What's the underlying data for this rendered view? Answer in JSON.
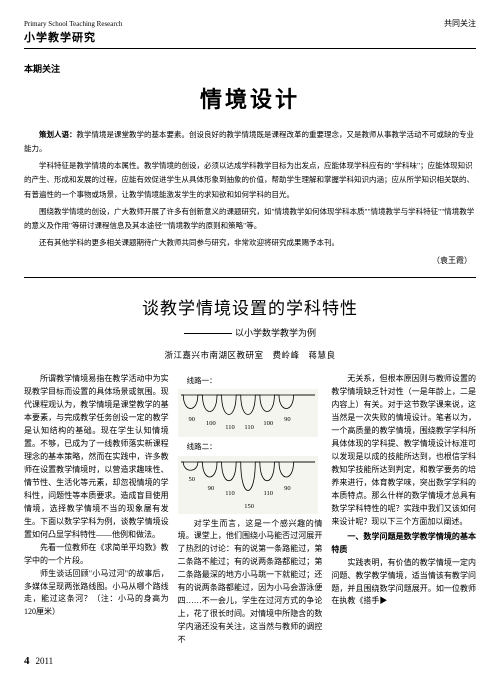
{
  "header": {
    "english": "Primary School Teaching Research",
    "journal": "小学教学研究",
    "right": "共同关注"
  },
  "section_label": "本期关注",
  "main_title": "情境设计",
  "editor_note": {
    "lead": "策划人语：",
    "p1": "教学情境是课堂教学的基本要素。创设良好的教学情境既是课程改革的重要理念，又是教师从事教学活动不可或缺的专业能力。",
    "p2": "学科特征是教学情境的本属性。教学情境的创设，必须以达成学科教学目标为出发点，应能体现学科应有的\"学科味\"；应能体现知识的产生、形成和发展的过程，应能有效促进学生从具体形象到抽象的价值，帮助学生理解和掌握学科知识内涵；应从所学知识相关联的、有普遍性的一个事物或场景，让教学情境能激发学生的求知欲和如何学科的目光。",
    "p3": "围绕教学情境的创设，广大教师开展了许多有创新意义的课题研究，如\"情境教学如何体现学科本质\"\"情境教学与学科特征\"\"情境教学的意义及作用\"等研讨课程信息及其本途径\"\"情境教学的原则和策略\"等。",
    "p4": "还有其他学科的更多相关课题期待广大教师共同参与研究，非常欢迎将研究成果赐予本刊。"
  },
  "signoff": "（袁王霞）",
  "article": {
    "title": "谈教学情境设置的学科特性",
    "subtitle": "以小学数学教学为例",
    "authors": "浙江嘉兴市南湖区教研室　费岭峰　蒋慧良"
  },
  "col1": {
    "p1": "所谓教学情境易指在教学活动中为实现教学目标而设置的具体场景或氛围。现代课程观认为，教学情境是课堂教学的基本要素，与完成教学任务创设一定的教学是认知结构的基础。现在学生认知情境置。不够，已成为了一线教师落实新课程理念的基本策略，然而在实践中，许多教师在设置教学情境时，以营造求趣味性、情节性、生活化等元素，却忽视情境的学科性，问题性等本质要求。造成盲目使用情境，选择教学情境不当的现象屡有发生。下面以数学学科为例，谈教学情境设置如何凸显学科特性——他例和做法。",
    "p2": "先看一位教师在《求简单平均数》教学中的一个片段。",
    "p3": "师生谈话回顾\"小马过河\"的故事后，多媒体呈现两张路线图。小马从哪个路线走，能过这条河？（注：小马的身高为120厘米）"
  },
  "charts": {
    "line1": {
      "label": "线路一：",
      "values": [
        90,
        100,
        110,
        110,
        100,
        90
      ],
      "depths": [
        18,
        22,
        26,
        26,
        22,
        18
      ],
      "stroke": "#000",
      "bg": "#f5f5f0"
    },
    "line2": {
      "label": "线路二：",
      "values": [
        50,
        90,
        110,
        150,
        110,
        90
      ],
      "depths": [
        11,
        20,
        25,
        38,
        25,
        20
      ],
      "stroke": "#000",
      "bg": "#f5f5f0"
    }
  },
  "col2": {
    "p1": "对学生而言，这是一个感兴趣的情境。课堂上，他们围绕小马能否过河展开了热烈的讨论：有的说第一条路能过，第二条路不能过；有的说两条路都能过；第二条路最深的地方小马跳一下就能过；还有的说两条路都能过，因为小马会游泳便四……不一会儿，学生在过河方式的争论上，花了很长时间。对情境中所隐含的数学内涵还没有关注，这当然与教师的调控不"
  },
  "col3": {
    "p1": "无关系，但根本原因则与教师设置的教学情境缺乏针对性（一是年龄上，二是内容上）有关。对于这节数学课来说，这当然是一次失败的情境设计。笔者以为，一个高质量的教学情境，围绕教学学科所具体体现的学科提、教学情境设计标准可以发现是以成的技能所达到，也根信学科教知学技能所达到判定，和教学要务的培养来进行，体育教学味，突出数学学科的本质特点。那么什样的数学情境才总具有数学学科特性的呢？实践中我们又该如何来设计呢？现以下三个方面加以阐述。",
    "h1": "一、数学问题是数学教学情境的基本特质",
    "p2": "实践表明，有价值的教学情境一定内问题、教学教学情境，适当情该有教学问题，并且围绕数学问题展开。如一位教师在执教《搭手▶"
  },
  "footer": {
    "page": "4",
    "year": "2011"
  }
}
